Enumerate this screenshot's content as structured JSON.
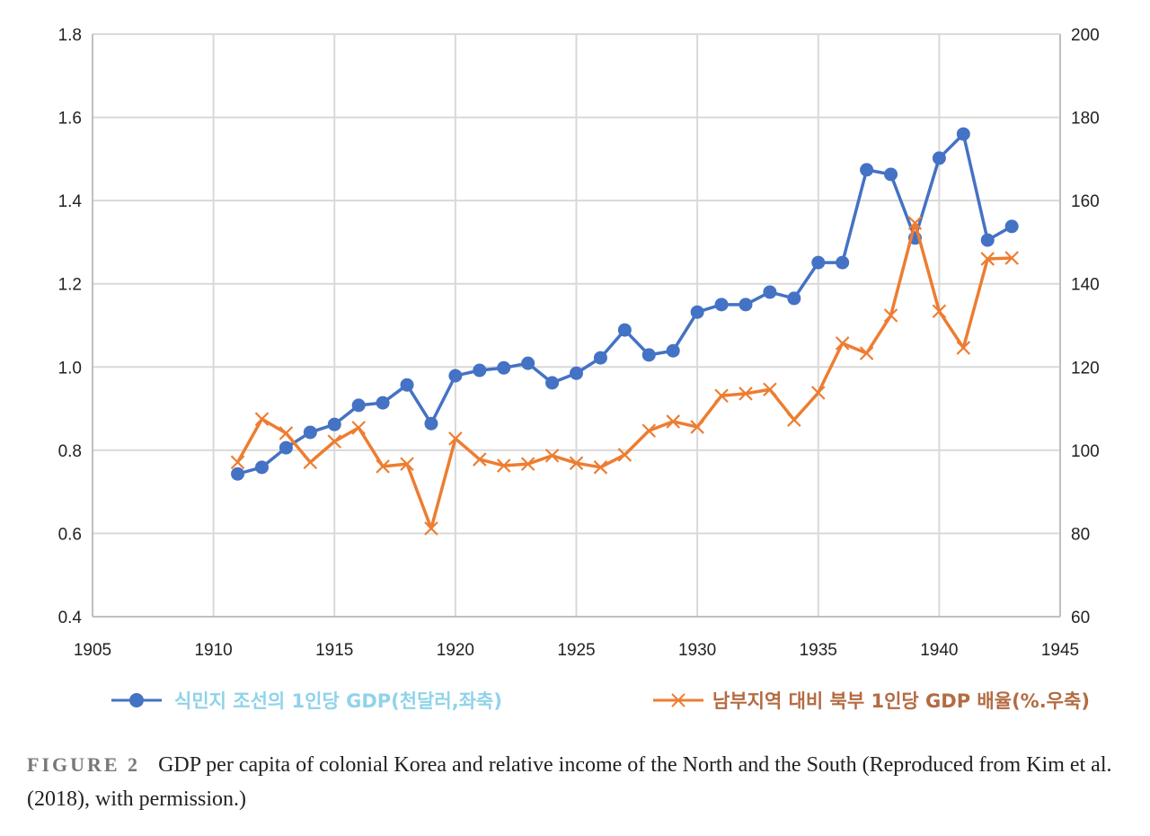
{
  "chart_data": {
    "type": "line",
    "title": "",
    "x": [
      1911,
      1912,
      1913,
      1914,
      1915,
      1916,
      1917,
      1918,
      1919,
      1920,
      1921,
      1922,
      1923,
      1924,
      1925,
      1926,
      1927,
      1928,
      1929,
      1930,
      1931,
      1932,
      1933,
      1934,
      1935,
      1936,
      1937,
      1938,
      1939,
      1940,
      1941,
      1942,
      1943
    ],
    "xlim": [
      1905,
      1945
    ],
    "xticks": [
      "1905",
      "1910",
      "1915",
      "1920",
      "1925",
      "1930",
      "1935",
      "1940",
      "1945"
    ],
    "ylim_left": [
      0.4,
      1.8
    ],
    "yticks_left": [
      "0.4",
      "0.6",
      "0.8",
      "1.0",
      "1.2",
      "1.4",
      "1.6",
      "1.8"
    ],
    "ylim_right": [
      60,
      200
    ],
    "yticks_right": [
      "60",
      "80",
      "100",
      "120",
      "140",
      "160",
      "180",
      "200"
    ],
    "grid": true,
    "legend_position": "bottom",
    "series": [
      {
        "name": "식민지 조선의 1인당 GDP(천달러,좌축)",
        "axis": "left",
        "marker": "circle",
        "color": "#4472c4",
        "label_color": "#8fd3ea",
        "values": [
          0.743,
          0.759,
          0.806,
          0.843,
          0.862,
          0.908,
          0.914,
          0.957,
          0.864,
          0.979,
          0.992,
          0.998,
          1.009,
          0.962,
          0.985,
          1.022,
          1.089,
          1.029,
          1.039,
          1.132,
          1.15,
          1.15,
          1.18,
          1.165,
          1.251,
          1.251,
          1.474,
          1.463,
          1.31,
          1.502,
          1.56,
          1.305,
          1.338
        ]
      },
      {
        "name": "남부지역 대비 북부 1인당 GDP 배율(%.우축)",
        "axis": "right",
        "marker": "x",
        "color": "#ed7d31",
        "label_color": "#b36b43",
        "values": [
          97.1,
          107.5,
          104.1,
          97.1,
          102.1,
          105.4,
          96.1,
          96.7,
          81.2,
          102.8,
          97.8,
          96.3,
          96.7,
          98.7,
          96.9,
          95.9,
          98.9,
          104.7,
          106.9,
          105.6,
          113.1,
          113.6,
          114.6,
          107.3,
          113.8,
          125.7,
          123.3,
          132.4,
          154.6,
          133.4,
          124.6,
          146.0,
          146.2
        ]
      }
    ]
  },
  "caption": {
    "label": "FIGURE 2",
    "text": "GDP per capita of colonial Korea and relative income of the North and the South (Reproduced from Kim et al. (2018), with permission.)"
  }
}
